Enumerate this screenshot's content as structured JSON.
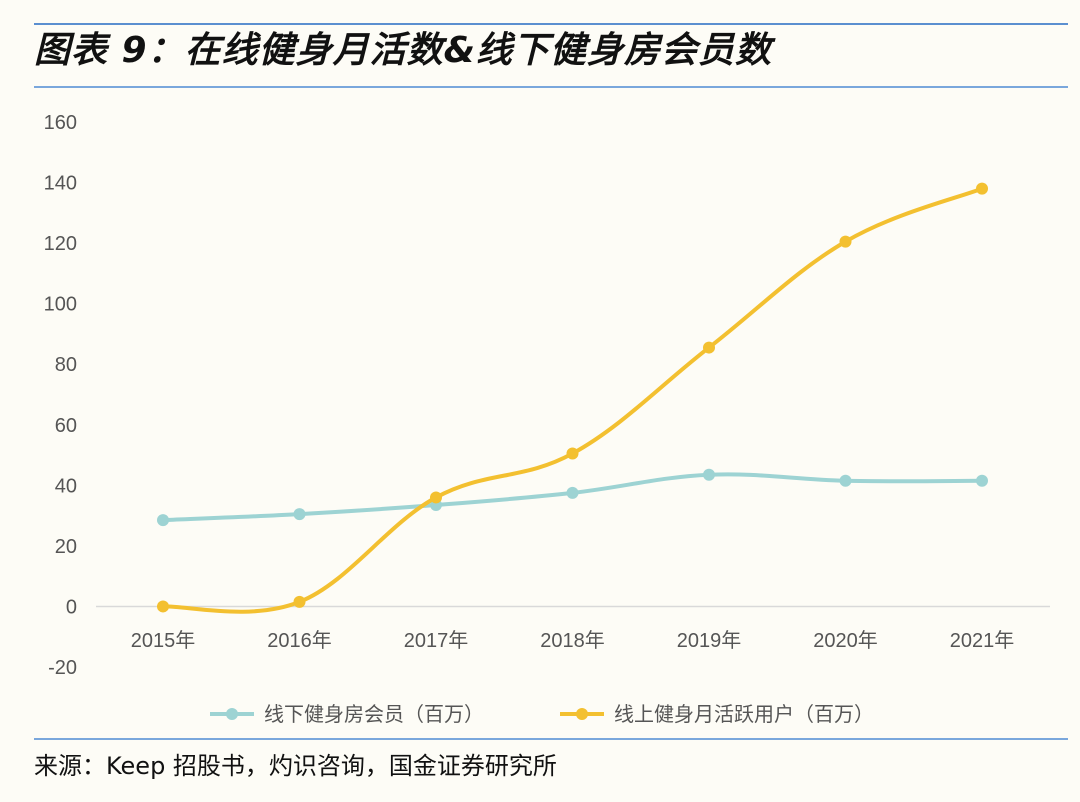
{
  "figure": {
    "title": "图表 9：在线健身月活数&线下健身房会员数",
    "source": "来源：Keep 招股书，灼识咨询，国金证券研究所"
  },
  "chart_data": {
    "type": "line",
    "title": "",
    "xlabel": "",
    "ylabel": "",
    "categories": [
      "2015年",
      "2016年",
      "2017年",
      "2018年",
      "2019年",
      "2020年",
      "2021年"
    ],
    "ylim": [
      -20,
      160
    ],
    "yticks": [
      -20,
      0,
      20,
      40,
      60,
      80,
      100,
      120,
      140,
      160
    ],
    "grid": false,
    "legend": "bottom",
    "series": [
      {
        "name": "线下健身房会员（百万）",
        "color": "#9dd3d3",
        "values": [
          28.5,
          30.5,
          33.5,
          37.5,
          43.5,
          41.5,
          41.5
        ]
      },
      {
        "name": "线上健身月活跃用户（百万）",
        "color": "#f3c030",
        "values": [
          0,
          1.5,
          36,
          50.5,
          85.5,
          120.5,
          138
        ]
      }
    ]
  }
}
